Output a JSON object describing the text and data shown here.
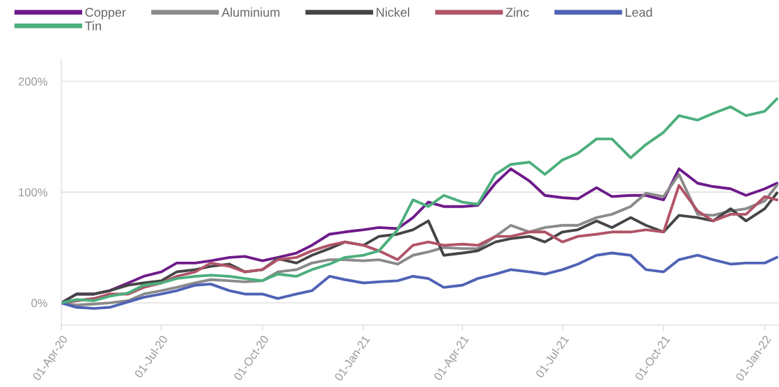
{
  "chart_data": {
    "type": "line",
    "x": [
      "2020-04-01",
      "2020-04-15",
      "2020-05-01",
      "2020-05-15",
      "2020-06-01",
      "2020-06-15",
      "2020-07-01",
      "2020-07-15",
      "2020-08-01",
      "2020-08-15",
      "2020-09-01",
      "2020-09-15",
      "2020-10-01",
      "2020-10-15",
      "2020-11-01",
      "2020-11-15",
      "2020-12-01",
      "2020-12-15",
      "2021-01-01",
      "2021-01-15",
      "2021-02-01",
      "2021-02-15",
      "2021-03-01",
      "2021-03-15",
      "2021-04-01",
      "2021-04-15",
      "2021-05-01",
      "2021-05-15",
      "2021-06-01",
      "2021-06-15",
      "2021-07-01",
      "2021-07-15",
      "2021-08-01",
      "2021-08-15",
      "2021-09-01",
      "2021-09-15",
      "2021-10-01",
      "2021-10-15",
      "2021-11-01",
      "2021-11-15",
      "2021-12-01",
      "2021-12-15",
      "2022-01-01",
      "2022-01-12"
    ],
    "series": [
      {
        "name": "Copper",
        "color": "#6e1a8a",
        "values": [
          0,
          8,
          8,
          11,
          18,
          24,
          28,
          36,
          36,
          38,
          41,
          42,
          38,
          41,
          45,
          52,
          62,
          64,
          66,
          68,
          67,
          77,
          91,
          87,
          87,
          88,
          108,
          121,
          110,
          97,
          95,
          94,
          104,
          96,
          97,
          97,
          93,
          121,
          108,
          105,
          103,
          97,
          103,
          108
        ]
      },
      {
        "name": "Aluminium",
        "color": "#8a8a8a",
        "values": [
          0,
          -2,
          -1,
          0,
          2,
          8,
          11,
          14,
          18,
          21,
          20,
          19,
          20,
          28,
          30,
          36,
          39,
          39,
          38,
          39,
          35,
          43,
          46,
          50,
          49,
          49,
          60,
          70,
          64,
          68,
          70,
          70,
          77,
          80,
          87,
          99,
          96,
          116,
          80,
          79,
          83,
          85,
          92,
          106
        ]
      },
      {
        "name": "Nickel",
        "color": "#454545",
        "values": [
          0,
          8,
          8,
          11,
          16,
          18,
          20,
          28,
          30,
          33,
          35,
          28,
          30,
          40,
          36,
          43,
          49,
          55,
          52,
          60,
          62,
          66,
          74,
          43,
          45,
          47,
          55,
          58,
          60,
          55,
          64,
          66,
          74,
          68,
          77,
          70,
          64,
          79,
          77,
          74,
          85,
          74,
          85,
          99
        ]
      },
      {
        "name": "Zinc",
        "color": "#b05468",
        "values": [
          0,
          2,
          4,
          8,
          8,
          14,
          18,
          24,
          28,
          36,
          33,
          28,
          30,
          39,
          41,
          47,
          52,
          55,
          52,
          47,
          39,
          52,
          55,
          52,
          53,
          52,
          60,
          60,
          64,
          64,
          55,
          60,
          62,
          64,
          64,
          66,
          64,
          106,
          83,
          74,
          80,
          80,
          96,
          93
        ]
      },
      {
        "name": "Lead",
        "color": "#4f62b5",
        "values": [
          0,
          -4,
          -5,
          -4,
          1,
          5,
          8,
          11,
          16,
          17,
          11,
          8,
          8,
          4,
          8,
          11,
          24,
          21,
          18,
          19,
          20,
          24,
          22,
          14,
          16,
          22,
          26,
          30,
          28,
          26,
          30,
          35,
          43,
          45,
          43,
          30,
          28,
          39,
          43,
          39,
          35,
          36,
          36,
          41
        ]
      },
      {
        "name": "Tin",
        "color": "#4caf7d",
        "values": [
          0,
          3,
          2,
          6,
          9,
          16,
          18,
          22,
          24,
          25,
          24,
          22,
          20,
          26,
          24,
          30,
          35,
          41,
          43,
          47,
          66,
          93,
          87,
          97,
          91,
          89,
          116,
          125,
          127,
          116,
          129,
          135,
          148,
          148,
          131,
          143,
          154,
          169,
          165,
          171,
          177,
          169,
          173,
          184
        ]
      }
    ],
    "xlim": [
      "2020-04-01",
      "2022-01-14"
    ],
    "xticks": [
      {
        "value": "2020-04-01",
        "label": "01-Apr-20"
      },
      {
        "value": "2020-07-01",
        "label": "01-Jul-20"
      },
      {
        "value": "2020-10-01",
        "label": "01-Oct-20"
      },
      {
        "value": "2021-01-01",
        "label": "01-Jan-21"
      },
      {
        "value": "2021-04-01",
        "label": "01-Apr-21"
      },
      {
        "value": "2021-07-01",
        "label": "01-Jul-21"
      },
      {
        "value": "2021-10-01",
        "label": "01-Oct-21"
      },
      {
        "value": "2022-01-01",
        "label": "01-Jan-22"
      }
    ],
    "ylim": [
      -20,
      220
    ],
    "yticks": [
      {
        "value": 0,
        "label": "0%"
      },
      {
        "value": 100,
        "label": "100%"
      },
      {
        "value": 200,
        "label": "200%"
      }
    ],
    "grid": "y",
    "legend": "top left",
    "marker": "none",
    "line_style": "solid"
  }
}
